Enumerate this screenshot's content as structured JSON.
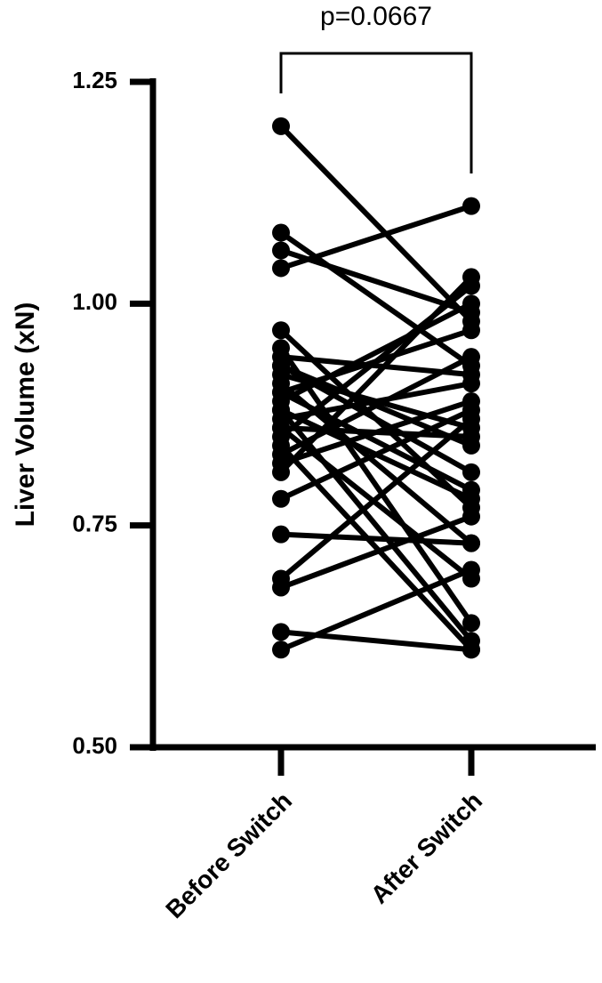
{
  "chart_data": {
    "type": "paired-line",
    "annotation": "p=0.0667",
    "y_label": "Liver Volume (xN)",
    "categories": [
      "Before Switch",
      "After Switch"
    ],
    "ylim": [
      0.5,
      1.25
    ],
    "yticks": [
      {
        "value": 0.5,
        "label": "0.50"
      },
      0.75,
      {
        "value": 1.0,
        "label": "1.00"
      },
      1.25
    ],
    "color": "#000000",
    "series": [
      {
        "values": [
          1.2,
          0.98
        ]
      },
      {
        "values": [
          1.08,
          0.93
        ]
      },
      {
        "values": [
          1.06,
          0.99
        ]
      },
      {
        "values": [
          1.04,
          1.11
        ]
      },
      {
        "values": [
          0.97,
          0.77
        ]
      },
      {
        "values": [
          0.95,
          0.64
        ]
      },
      {
        "values": [
          0.94,
          0.92
        ]
      },
      {
        "values": [
          0.93,
          0.81
        ]
      },
      {
        "values": [
          0.92,
          0.86
        ]
      },
      {
        "values": [
          0.91,
          0.73
        ]
      },
      {
        "values": [
          0.9,
          0.97
        ]
      },
      {
        "values": [
          0.89,
          1.0
        ]
      },
      {
        "values": [
          0.88,
          0.78
        ]
      },
      {
        "values": [
          0.87,
          0.91
        ]
      },
      {
        "values": [
          0.86,
          0.85
        ]
      },
      {
        "values": [
          0.85,
          1.02
        ]
      },
      {
        "values": [
          0.84,
          0.61
        ]
      },
      {
        "values": [
          0.83,
          0.94
        ]
      },
      {
        "values": [
          0.82,
          0.89
        ]
      },
      {
        "values": [
          0.81,
          1.03
        ]
      },
      {
        "values": [
          0.78,
          0.88
        ]
      },
      {
        "values": [
          0.74,
          0.73
        ]
      },
      {
        "values": [
          0.69,
          0.87
        ]
      },
      {
        "values": [
          0.68,
          0.76
        ]
      },
      {
        "values": [
          0.63,
          0.61
        ]
      },
      {
        "values": [
          0.61,
          0.7
        ]
      },
      {
        "values": [
          0.88,
          0.62
        ]
      },
      {
        "values": [
          0.86,
          0.69
        ]
      },
      {
        "values": [
          0.93,
          0.84
        ]
      },
      {
        "values": [
          0.9,
          0.79
        ]
      }
    ]
  }
}
